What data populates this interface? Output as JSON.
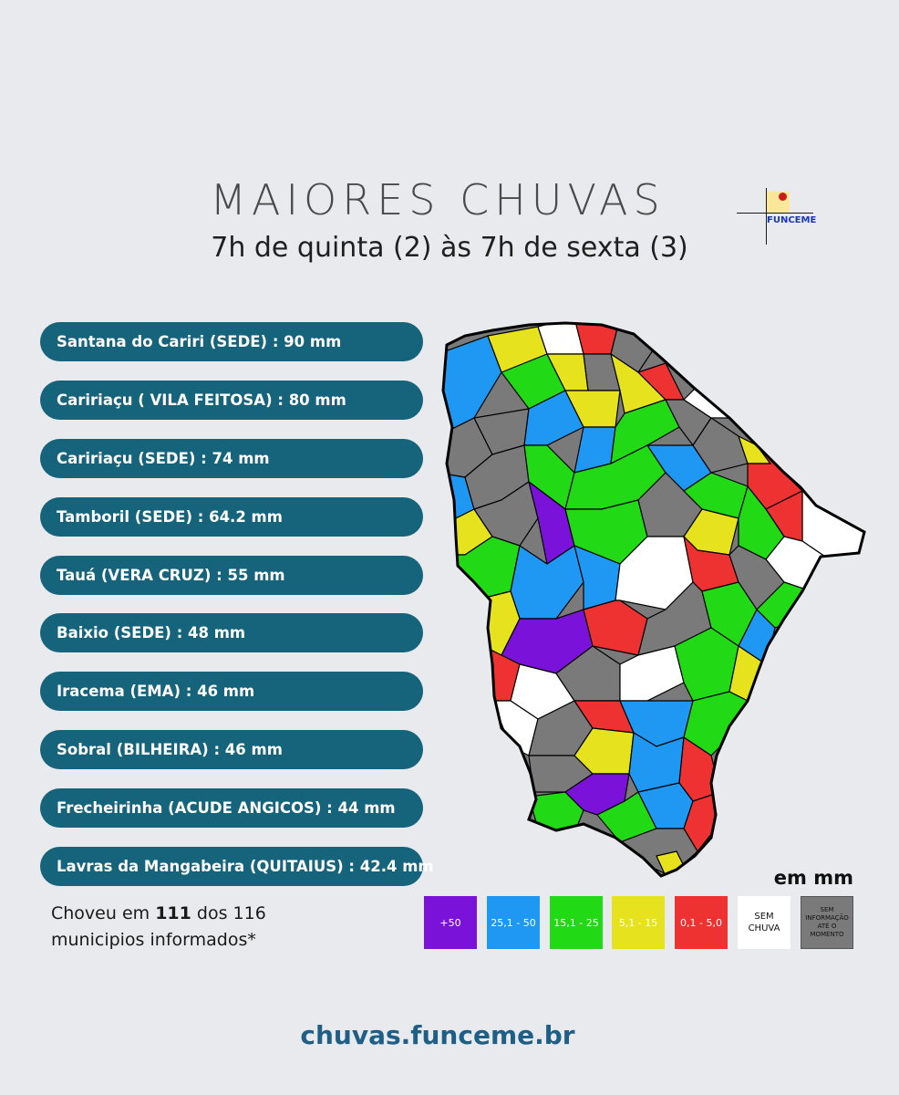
{
  "header": {
    "title": "MAIORES CHUVAS",
    "subtitle": "7h de quinta (2) às 7h de sexta (3)",
    "logo_text": "FUNCEME"
  },
  "ranking": [
    "Santana do Cariri (SEDE) : 90 mm",
    "Caririaçu ( VILA FEITOSA) : 80 mm",
    "Caririaçu (SEDE) : 74 mm",
    "Tamboril (SEDE) : 64.2 mm",
    "Tauá (VERA CRUZ) : 55 mm",
    "Baixio (SEDE) : 48 mm",
    "Iracema (EMA) : 46 mm",
    "Sobral (BILHEIRA) : 46 mm",
    "Frecheirinha (ACUDE ANGICOS) : 44 mm",
    "Lavras da Mangabeira (QUITAIUS) : 42.4 mm"
  ],
  "summary": {
    "prefix": "Choveu em ",
    "count": "111",
    "middle": " dos 116",
    "line2": "municipios informados*"
  },
  "legend": {
    "unit": "em mm",
    "items": [
      {
        "label": "+50",
        "color": "#7b12d9",
        "text_color": "#ffffff"
      },
      {
        "label": "25,1 - 50",
        "color": "#1e98f2",
        "text_color": "#ffffff"
      },
      {
        "label": "15,1 - 25",
        "color": "#22d916",
        "text_color": "#ffffff"
      },
      {
        "label": "5,1 - 15",
        "color": "#e6e31e",
        "text_color": "#ffffff"
      },
      {
        "label": "0,1 - 5,0",
        "color": "#ee3232",
        "text_color": "#ffffff"
      },
      {
        "label": "SEM CHUVA",
        "color": "#ffffff",
        "text_color": "#111111"
      },
      {
        "label": "SEM INFORMAÇÃO ATÉ O MOMENTO",
        "color": "#7a7a7a",
        "text_color": "#111111"
      }
    ]
  },
  "footer": {
    "url": "chuvas.funceme.br"
  }
}
